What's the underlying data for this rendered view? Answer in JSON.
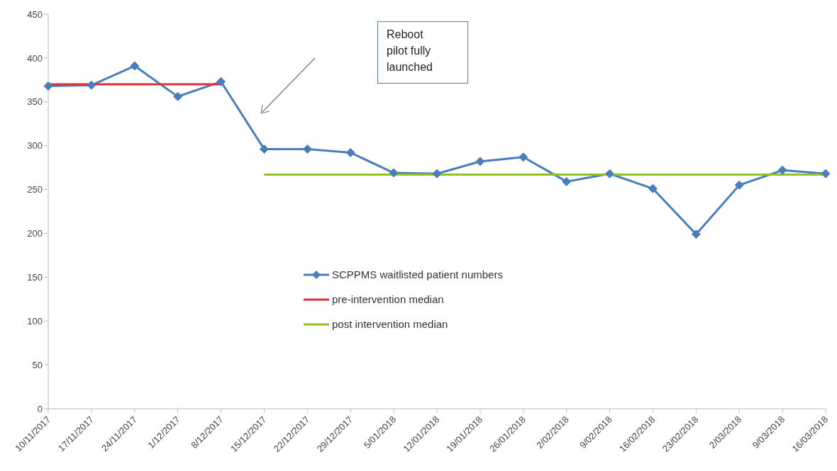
{
  "chart_data": {
    "type": "line",
    "categories": [
      "10/11/2017",
      "17/11/2017",
      "24/11/2017",
      "1/12/2017",
      "8/12/2017",
      "15/12/2017",
      "22/12/2017",
      "29/12/2017",
      "5/01/2018",
      "12/01/2018",
      "19/01/2018",
      "26/01/2018",
      "2/02/2018",
      "9/02/2018",
      "16/02/2018",
      "23/02/2018",
      "2/03/2018",
      "9/03/2018",
      "16/03/2018"
    ],
    "series": [
      {
        "name": "SCPPMS waitlisted patient numbers",
        "color": "#4a7ebb",
        "marker": "diamond",
        "values": [
          368,
          369,
          391,
          356,
          373,
          296,
          296,
          292,
          269,
          268,
          282,
          287,
          259,
          268,
          251,
          199,
          255,
          272,
          268
        ]
      },
      {
        "name": "pre-intervention median",
        "color": "#e0303a",
        "marker": "none",
        "values": [
          370,
          370,
          370,
          370,
          370,
          null,
          null,
          null,
          null,
          null,
          null,
          null,
          null,
          null,
          null,
          null,
          null,
          null,
          null
        ]
      },
      {
        "name": "post intervention median",
        "color": "#8fc31f",
        "marker": "none",
        "values": [
          null,
          null,
          null,
          null,
          null,
          267,
          267,
          267,
          267,
          267,
          267,
          267,
          267,
          267,
          267,
          267,
          267,
          267,
          267
        ]
      }
    ],
    "ylim": [
      0,
      450
    ],
    "yticks": [
      0,
      50,
      100,
      150,
      200,
      250,
      300,
      350,
      400,
      450
    ],
    "grid": false,
    "legend": "center",
    "annotations": [
      "Reboot pilot fully launched"
    ]
  }
}
